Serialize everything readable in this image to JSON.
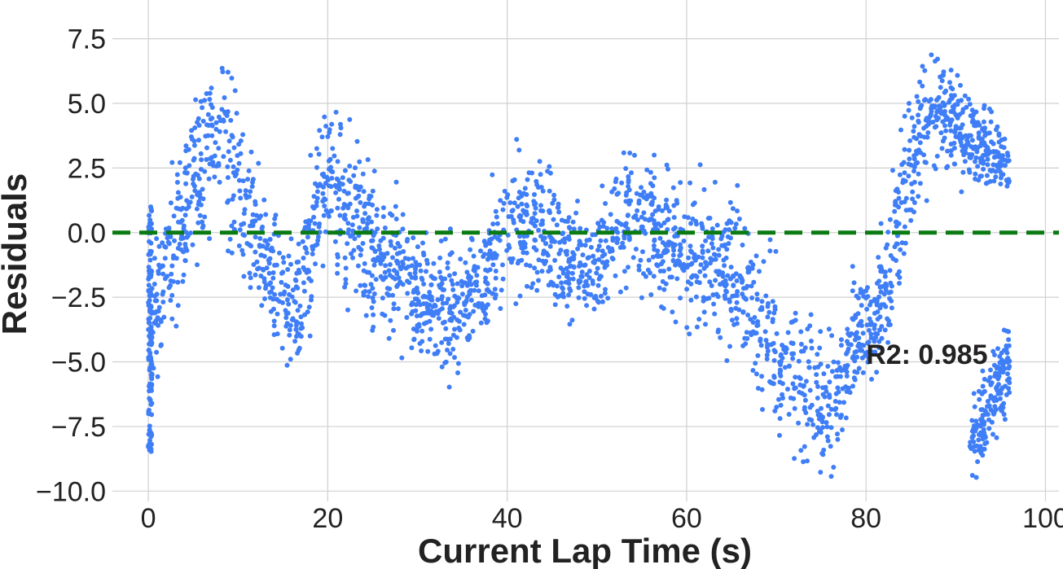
{
  "chart_data": {
    "type": "scatter",
    "title": "",
    "xlabel": "Current Lap Time (s)",
    "ylabel": "Residuals",
    "xlim": [
      -4,
      101.5
    ],
    "ylim": [
      -10.4,
      9.0
    ],
    "xticks": [
      0,
      20,
      40,
      60,
      80,
      100
    ],
    "yticks": [
      7.5,
      5.0,
      2.5,
      0.0,
      -2.5,
      -5.0,
      -7.5,
      -10.0
    ],
    "xtick_labels": [
      "0",
      "20",
      "40",
      "60",
      "80",
      "100"
    ],
    "ytick_labels": [
      "7.5",
      "5.0",
      "2.5",
      "0.0",
      "−2.5",
      "−5.0",
      "−7.5",
      "−10.0"
    ],
    "grid": true,
    "reference_line": {
      "y": 0.0,
      "style": "dashed",
      "color": "#0a7a12"
    },
    "annotation": {
      "text": "R2: 0.985",
      "x": 80,
      "y": -4.7
    },
    "series": [
      {
        "color": "#3f7ef7",
        "trend": [
          [
            0.0,
            -2.5,
            3.0
          ],
          [
            0.5,
            -3.2,
            2.4
          ],
          [
            1.5,
            -2.4,
            2.8
          ],
          [
            3.0,
            -0.5,
            3.4
          ],
          [
            5.0,
            2.0,
            3.4
          ],
          [
            8.0,
            4.0,
            3.8
          ],
          [
            11.0,
            0.8,
            3.2
          ],
          [
            14.0,
            -2.0,
            3.0
          ],
          [
            16.5,
            -3.5,
            2.4
          ],
          [
            18.0,
            -0.5,
            3.0
          ],
          [
            20.0,
            2.0,
            3.4
          ],
          [
            23.0,
            0.5,
            3.2
          ],
          [
            27.0,
            -1.5,
            2.8
          ],
          [
            31.0,
            -2.5,
            2.4
          ],
          [
            34.0,
            -3.0,
            2.6
          ],
          [
            37.0,
            -1.8,
            2.6
          ],
          [
            40.0,
            0.2,
            3.0
          ],
          [
            43.0,
            0.3,
            3.0
          ],
          [
            46.0,
            -1.0,
            2.4
          ],
          [
            49.0,
            -1.6,
            1.8
          ],
          [
            51.0,
            -0.5,
            2.4
          ],
          [
            54.0,
            0.8,
            3.0
          ],
          [
            57.0,
            0.0,
            3.0
          ],
          [
            61.0,
            -1.0,
            3.0
          ],
          [
            65.0,
            -1.6,
            3.0
          ],
          [
            68.0,
            -3.5,
            3.0
          ],
          [
            71.0,
            -5.0,
            3.0
          ],
          [
            74.0,
            -6.0,
            3.0
          ],
          [
            76.5,
            -7.0,
            2.8
          ],
          [
            78.5,
            -4.0,
            2.2
          ],
          [
            80.5,
            -3.5,
            2.2
          ],
          [
            82.5,
            -2.0,
            3.0
          ],
          [
            84.0,
            1.5,
            3.4
          ],
          [
            86.0,
            4.0,
            3.2
          ],
          [
            88.0,
            5.0,
            2.2
          ],
          [
            91.0,
            4.0,
            2.2
          ],
          [
            94.0,
            3.0,
            1.6
          ],
          [
            96.0,
            2.5,
            1.2
          ]
        ],
        "cluster": {
          "x": [
            91.5,
            96.0
          ],
          "y": [
            -9.3,
            -3.3
          ]
        }
      }
    ]
  }
}
